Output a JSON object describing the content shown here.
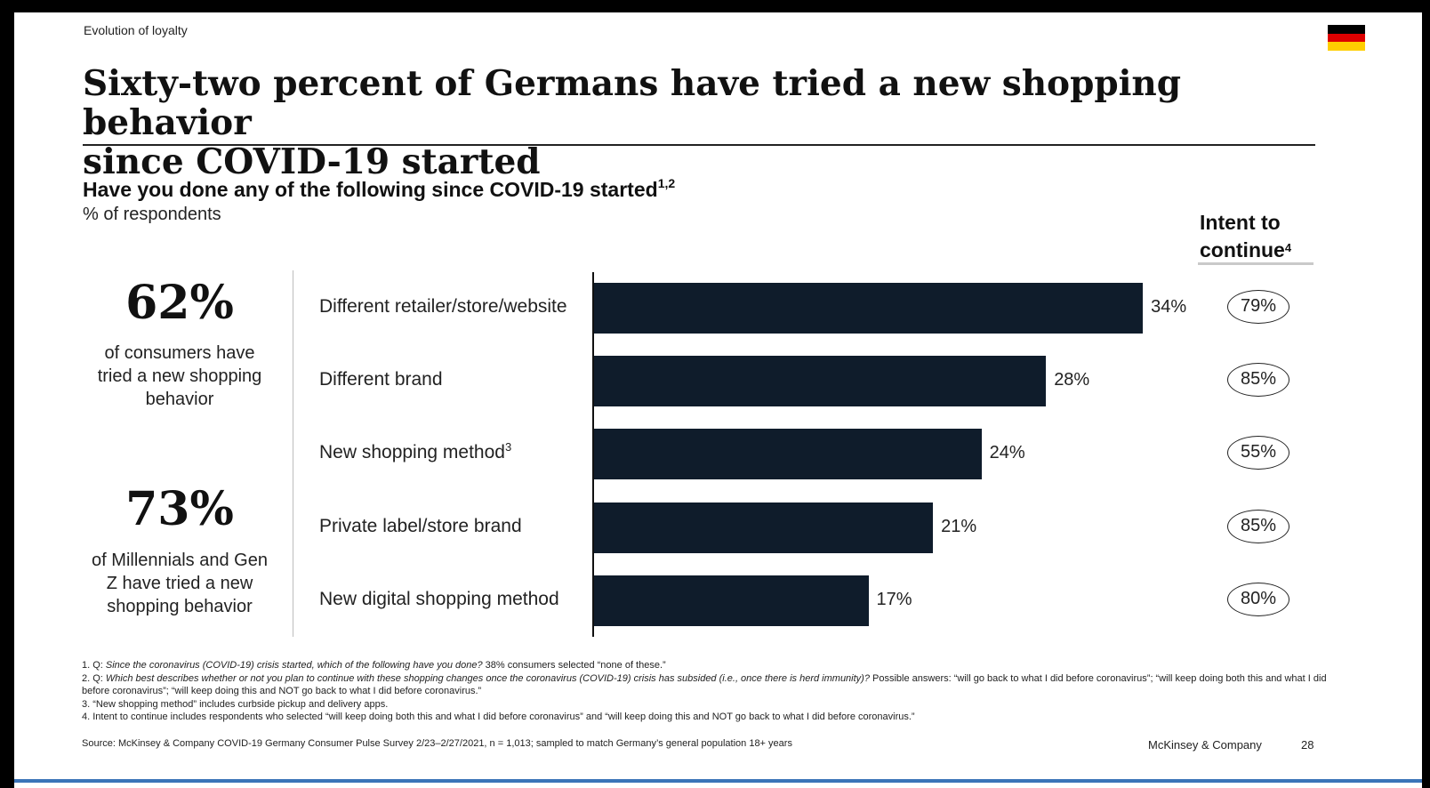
{
  "section_label": "Evolution of loyalty",
  "flag_colors": [
    "#000000",
    "#dd0000",
    "#ffce00"
  ],
  "title_line1": "Sixty-two percent of Germans have tried a new shopping behavior",
  "title_line2": "since COVID-19 started",
  "question": "Have you done any of the following since COVID-19 started",
  "question_sup": "1,2",
  "unit": "% of respondents",
  "intent_head_line1": "Intent to",
  "intent_head_line2": "continue",
  "intent_head_sup": "4",
  "stats": [
    {
      "value": "62%",
      "text_lines": [
        "of consumers have",
        "tried a new shopping",
        "behavior"
      ]
    },
    {
      "value": "73%",
      "text_lines": [
        "of Millennials and Gen",
        "Z have tried a new",
        "shopping behavior"
      ]
    }
  ],
  "chart_data": {
    "type": "bar",
    "orientation": "horizontal",
    "title": "Have you done any of the following since COVID-19 started",
    "ylabel": "% of respondents",
    "categories": [
      "Different retailer/store/website",
      "Different brand",
      "New shopping method",
      "Private label/store brand",
      "New digital shopping method"
    ],
    "category_sups": [
      "",
      "",
      "3",
      "",
      ""
    ],
    "values": [
      34,
      28,
      24,
      21,
      17
    ],
    "value_labels": [
      "34%",
      "28%",
      "24%",
      "21%",
      "17%"
    ],
    "intent_to_continue": [
      "79%",
      "85%",
      "55%",
      "85%",
      "80%"
    ],
    "xlim": [
      0,
      40
    ],
    "bar_color": "#0f1c2b",
    "grid": false
  },
  "footnotes": [
    {
      "prefix": "1. Q: ",
      "italic": "Since the coronavirus (COVID-19) crisis started, which of the following have you done?",
      "rest": " 38% consumers selected “none of these.”"
    },
    {
      "prefix": "2. Q: ",
      "italic": "Which best describes whether or not you plan to continue with these shopping changes once the coronavirus (COVID-19) crisis has subsided (i.e., once there is herd immunity)?",
      "rest": " Possible answers: “will go back to what I did before coronavirus”; “will keep doing both this and what I did before coronavirus”; “will keep doing this and NOT go back to what I did before coronavirus.”"
    },
    {
      "prefix": "3. ",
      "italic": "",
      "rest": "“New shopping method” includes curbside pickup and delivery apps."
    },
    {
      "prefix": "4. ",
      "italic": "",
      "rest": "Intent to continue includes respondents who selected “will keep doing both this and what I did before coronavirus” and “will keep doing this and NOT go back to what I did before coronavirus.”"
    }
  ],
  "source": "Source: McKinsey & Company COVID-19 Germany Consumer Pulse Survey 2/23–2/27/2021, n = 1,013; sampled to match Germany’s general population 18+ years",
  "brand": "McKinsey & Company",
  "page_number": "28"
}
